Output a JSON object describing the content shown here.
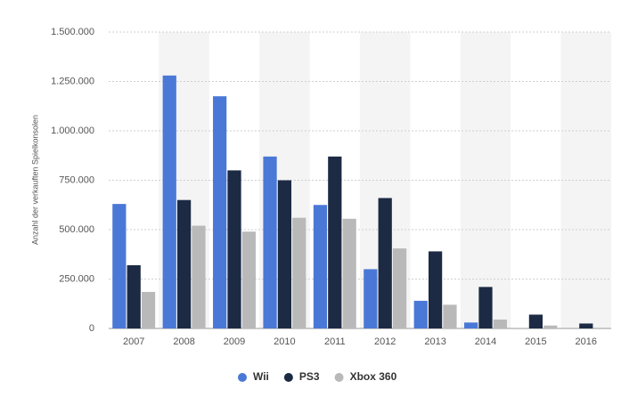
{
  "chart_data": {
    "type": "bar",
    "y_label": "Anzahl der verkauften Spielkonsolen",
    "categories": [
      "2007",
      "2008",
      "2009",
      "2010",
      "2011",
      "2012",
      "2013",
      "2014",
      "2015",
      "2016"
    ],
    "series": [
      {
        "name": "Wii",
        "color": "#4a78d6",
        "values": [
          630000,
          1280000,
          1175000,
          870000,
          625000,
          300000,
          140000,
          30000,
          0,
          0
        ]
      },
      {
        "name": "PS3",
        "color": "#1c2a44",
        "values": [
          320000,
          650000,
          800000,
          750000,
          870000,
          660000,
          390000,
          210000,
          70000,
          25000
        ]
      },
      {
        "name": "Xbox 360",
        "color": "#b9b9b9",
        "values": [
          185000,
          520000,
          490000,
          560000,
          555000,
          405000,
          120000,
          45000,
          15000,
          0
        ]
      }
    ],
    "ylim": [
      0,
      1500000
    ],
    "yticks": [
      0,
      {
        "value": 250000,
        "label": "250.000"
      },
      {
        "value": 500000,
        "label": "500.000"
      },
      {
        "value": 750000,
        "label": "750.000"
      },
      {
        "value": 1000000,
        "label": "1.000.000"
      },
      {
        "value": 1250000,
        "label": "1.250.000"
      },
      {
        "value": 1500000,
        "label": "1.500.000"
      }
    ],
    "grid": true
  }
}
